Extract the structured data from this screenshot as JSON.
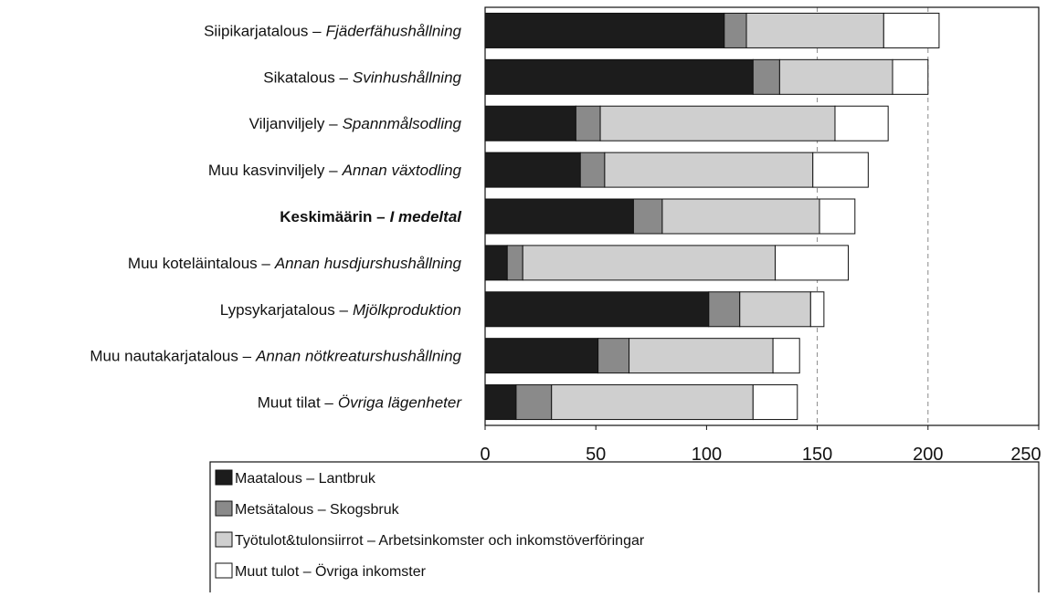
{
  "chart_data": {
    "type": "stacked_bar_horizontal",
    "categories_fi": [
      "Siipikarjatalous –",
      "Sikatalous –",
      "Viljanviljely –",
      "Muu kasvinviljely –",
      "Keskimäärin –",
      "Muu koteläintalous –",
      "Lypsykarjatalous –",
      "Muu nautakarjatalous –",
      "Muut tilat –"
    ],
    "categories_sv": [
      "Fjäderfähushållning",
      "Svinhushållning",
      "Spannmålsodling",
      "Annan växtodling",
      "I medeltal",
      "Annan husdjurshushållning",
      "Mjölkproduktion",
      "Annan nötkreatu­rshushållning",
      "Övriga lägenheter"
    ],
    "bold_index": 4,
    "series": [
      {
        "name": "Maatalous – Lantbruk",
        "color": "#1c1c1c",
        "values": [
          108,
          121,
          41,
          43,
          67,
          10,
          101,
          51,
          14
        ]
      },
      {
        "name": "Metsätalous – Skogsbruk",
        "color": "#8a8a8a",
        "values": [
          10,
          12,
          11,
          11,
          13,
          7,
          14,
          14,
          16
        ]
      },
      {
        "name": "Työtulot&tulonsiirrot – Arbetsinkomster och inkomstöverföringar",
        "color": "#cfcfcf",
        "values": [
          62,
          51,
          106,
          94,
          71,
          114,
          32,
          65,
          91
        ]
      },
      {
        "name": "Muut tulot – Övriga inkomster",
        "color": "#ffffff",
        "values": [
          25,
          16,
          24,
          25,
          16,
          33,
          6,
          12,
          20
        ]
      }
    ],
    "xlim": [
      0,
      250
    ],
    "xticks": [
      0,
      50,
      100,
      150,
      200,
      250
    ],
    "dashed_grid": [
      150,
      200
    ]
  }
}
